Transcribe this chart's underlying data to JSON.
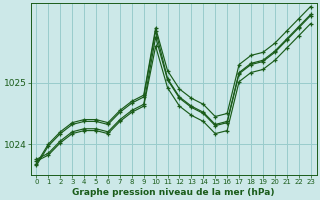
{
  "title": "Graphe pression niveau de la mer (hPa)",
  "background_color": "#cce8e8",
  "grid_color": "#99cccc",
  "line_color": "#1a5c1a",
  "xlim": [
    -0.5,
    23.5
  ],
  "ylim": [
    1023.5,
    1026.3
  ],
  "yticks": [
    1024,
    1025
  ],
  "xticks": [
    0,
    1,
    2,
    3,
    4,
    5,
    6,
    7,
    8,
    9,
    10,
    11,
    12,
    13,
    14,
    15,
    16,
    17,
    18,
    19,
    20,
    21,
    22,
    23
  ],
  "series": [
    [
      1023.75,
      1023.85,
      1024.05,
      1024.2,
      1024.25,
      1024.25,
      1024.2,
      1024.4,
      1024.55,
      1024.65,
      1025.75,
      1025.05,
      1024.75,
      1024.6,
      1024.5,
      1024.3,
      1024.35,
      1025.15,
      1025.3,
      1025.35,
      1025.5,
      1025.7,
      1025.9,
      1026.1
    ],
    [
      1023.72,
      1023.82,
      1024.02,
      1024.17,
      1024.22,
      1024.22,
      1024.17,
      1024.37,
      1024.52,
      1024.62,
      1025.6,
      1024.92,
      1024.62,
      1024.47,
      1024.37,
      1024.17,
      1024.22,
      1025.02,
      1025.17,
      1025.22,
      1025.37,
      1025.57,
      1025.77,
      1025.97
    ],
    [
      1023.68,
      1024.0,
      1024.2,
      1024.35,
      1024.4,
      1024.4,
      1024.35,
      1024.55,
      1024.7,
      1024.8,
      1025.9,
      1025.2,
      1024.9,
      1024.75,
      1024.65,
      1024.45,
      1024.5,
      1025.3,
      1025.45,
      1025.5,
      1025.65,
      1025.85,
      1026.05,
      1026.25
    ],
    [
      1023.65,
      1023.97,
      1024.17,
      1024.32,
      1024.37,
      1024.37,
      1024.32,
      1024.52,
      1024.67,
      1024.77,
      1025.85,
      1025.07,
      1024.77,
      1024.62,
      1024.52,
      1024.32,
      1024.37,
      1025.17,
      1025.32,
      1025.37,
      1025.52,
      1025.72,
      1025.92,
      1026.12
    ]
  ]
}
